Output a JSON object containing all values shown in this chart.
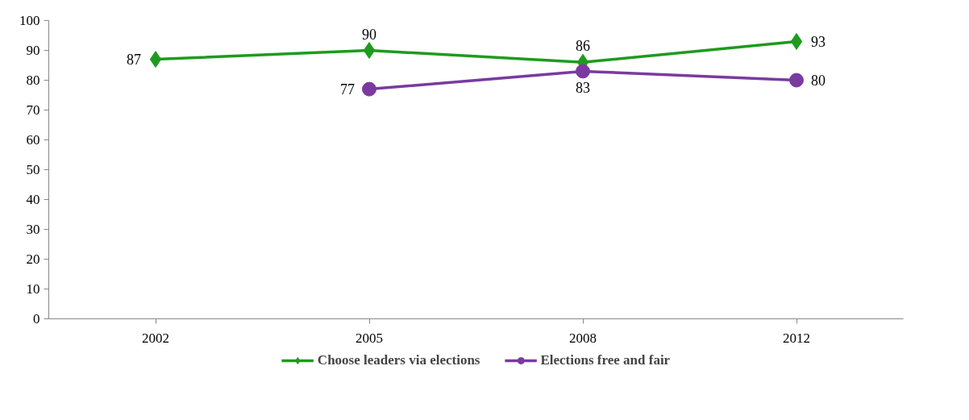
{
  "chart_data": {
    "type": "line",
    "categories": [
      "2002",
      "2005",
      "2008",
      "2012"
    ],
    "series": [
      {
        "name": "Choose leaders via elections",
        "color": "#1e9b1e",
        "marker": "diamond",
        "values": [
          87,
          90,
          86,
          93
        ]
      },
      {
        "name": "Elections free and fair",
        "color": "#7a3aa0",
        "marker": "circle",
        "values": [
          null,
          77,
          83,
          80
        ]
      }
    ],
    "ylim": [
      0,
      100
    ],
    "yticks": [
      0,
      10,
      20,
      30,
      40,
      50,
      60,
      70,
      80,
      90,
      100
    ],
    "grid": false,
    "legend": "bottom",
    "data_labels": true,
    "line_style": "solid"
  }
}
